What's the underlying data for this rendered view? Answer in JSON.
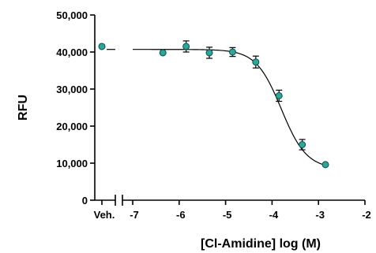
{
  "chart_data": {
    "type": "scatter",
    "title": "",
    "xlabel": "[Cl-Amidine] log (M)",
    "ylabel": "RFU",
    "xlim": [
      -7,
      -2
    ],
    "ylim": [
      0,
      50000
    ],
    "x_ticks": [
      -7,
      -6,
      -5,
      -4,
      -3,
      -2
    ],
    "x_tick_labels": [
      "-7",
      "-6",
      "-5",
      "-4",
      "-3",
      "-2"
    ],
    "y_ticks": [
      0,
      10000,
      20000,
      30000,
      40000,
      50000
    ],
    "y_tick_labels": [
      "0",
      "10,000",
      "20,000",
      "30,000",
      "40,000",
      "50,000"
    ],
    "vehicle": {
      "label": "Veh.",
      "y": 41500
    },
    "points": [
      {
        "x": -6.35,
        "y": 39800,
        "err": 0
      },
      {
        "x": -5.85,
        "y": 41500,
        "err": 1500
      },
      {
        "x": -5.35,
        "y": 39800,
        "err": 1500
      },
      {
        "x": -4.85,
        "y": 40000,
        "err": 1200
      },
      {
        "x": -4.35,
        "y": 37300,
        "err": 1600
      },
      {
        "x": -3.85,
        "y": 28200,
        "err": 1500
      },
      {
        "x": -3.35,
        "y": 15000,
        "err": 1400
      },
      {
        "x": -2.85,
        "y": 9600,
        "err": 0
      }
    ],
    "fit": {
      "bottom": 8500,
      "top": 40700,
      "log_ec50": -3.8,
      "hill": 1.6,
      "x_start": -7,
      "x_end": -2.85
    },
    "vehicle_line_y": 40700,
    "grid": false
  }
}
